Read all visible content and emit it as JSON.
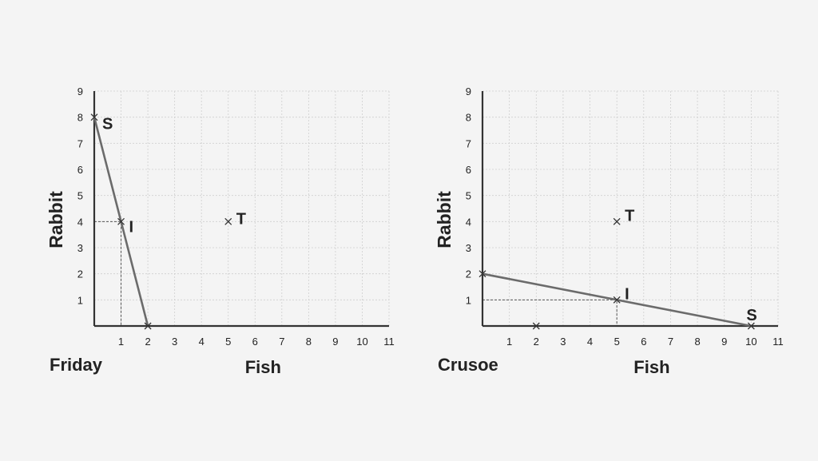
{
  "chart_data": [
    {
      "type": "line",
      "name": "Friday",
      "xlabel": "Fish",
      "ylabel": "Rabbit",
      "xlim": [
        0,
        11
      ],
      "ylim": [
        0,
        9
      ],
      "x_ticks": [
        1,
        2,
        3,
        4,
        5,
        6,
        7,
        8,
        9,
        10,
        11
      ],
      "y_ticks": [
        1,
        2,
        3,
        4,
        5,
        6,
        7,
        8,
        9
      ],
      "grid": true,
      "frontier": [
        [
          0,
          8
        ],
        [
          2,
          0
        ]
      ],
      "points": [
        {
          "label": "S",
          "x": 0,
          "y": 8
        },
        {
          "label": "I",
          "x": 1,
          "y": 4,
          "guides": true
        },
        {
          "label": "",
          "x": 2,
          "y": 0
        },
        {
          "label": "T",
          "x": 5,
          "y": 4
        }
      ]
    },
    {
      "type": "line",
      "name": "Crusoe",
      "xlabel": "Fish",
      "ylabel": "Rabbit",
      "xlim": [
        0,
        11
      ],
      "ylim": [
        0,
        9
      ],
      "x_ticks": [
        1,
        2,
        3,
        4,
        5,
        6,
        7,
        8,
        9,
        10,
        11
      ],
      "y_ticks": [
        1,
        2,
        3,
        4,
        5,
        6,
        7,
        8,
        9
      ],
      "grid": true,
      "frontier": [
        [
          0,
          2
        ],
        [
          10,
          0
        ]
      ],
      "points": [
        {
          "label": "",
          "x": 0,
          "y": 2
        },
        {
          "label": "I",
          "x": 5,
          "y": 1,
          "guides": true
        },
        {
          "label": "S",
          "x": 10,
          "y": 0
        },
        {
          "label": "",
          "x": 2,
          "y": 0
        },
        {
          "label": "T",
          "x": 5,
          "y": 4
        }
      ]
    }
  ]
}
